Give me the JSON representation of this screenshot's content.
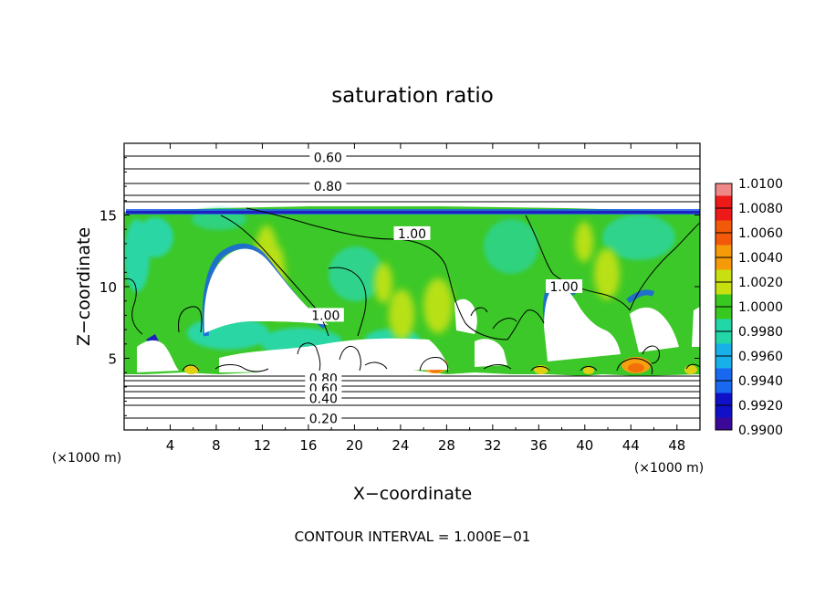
{
  "chart_data": {
    "type": "heatmap",
    "title": "saturation ratio",
    "xlabel": "X−coordinate",
    "ylabel": "Z−coordinate",
    "x_unit_left": "(×1000 m)",
    "x_unit_right": "(×1000 m)",
    "footer": "CONTOUR INTERVAL = 1.000E−01",
    "xlim": [
      0,
      50
    ],
    "ylim": [
      0,
      20
    ],
    "x_ticks": [
      4,
      8,
      12,
      16,
      20,
      24,
      28,
      32,
      36,
      40,
      44,
      48
    ],
    "x_tick_labels": [
      "4",
      "8",
      "12",
      "16",
      "20",
      "24",
      "28",
      "32",
      "36",
      "40",
      "44",
      "48"
    ],
    "y_ticks": [
      5,
      10,
      15
    ],
    "y_tick_labels": [
      "5",
      "10",
      "15"
    ],
    "colorbar": {
      "min": 0.99,
      "max": 1.01,
      "labels": [
        "1.0100",
        "1.0080",
        "1.0060",
        "1.0040",
        "1.0020",
        "1.0000",
        "0.9980",
        "0.9960",
        "0.9940",
        "0.9920",
        "0.9900"
      ],
      "colors": [
        "#f08888",
        "#ee1a1a",
        "#f25a0a",
        "#f59a08",
        "#c8e010",
        "#38c820",
        "#22d6a8",
        "#18b0e8",
        "#1868f0",
        "#1010c8",
        "#3c0898"
      ]
    },
    "contour_labels": [
      {
        "text": "0.60",
        "x": 17.7,
        "z": 19.0
      },
      {
        "text": "0.80",
        "x": 17.7,
        "z": 17.0
      },
      {
        "text": "1.00",
        "x": 25.0,
        "z": 13.7
      },
      {
        "text": "1.00",
        "x": 38.2,
        "z": 10.0
      },
      {
        "text": "1.00",
        "x": 17.5,
        "z": 8.0
      },
      {
        "text": "0.80",
        "x": 17.3,
        "z": 3.6
      },
      {
        "text": "0.60",
        "x": 17.3,
        "z": 2.9
      },
      {
        "text": "0.40",
        "x": 17.3,
        "z": 2.2
      },
      {
        "text": "0.20",
        "x": 17.3,
        "z": 0.8
      }
    ]
  }
}
